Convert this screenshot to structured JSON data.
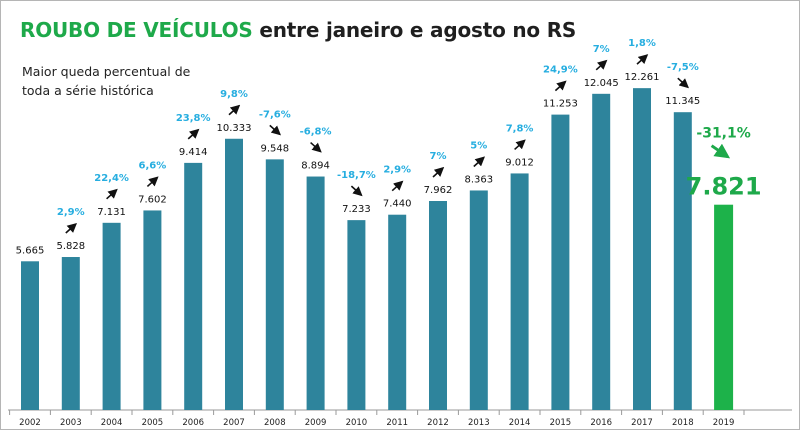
{
  "title": {
    "highlight": "ROUBO DE VEÍCULOS",
    "rest": "entre janeiro e agosto no RS"
  },
  "annotation": "Maior queda percentual de toda a série histórica",
  "colors": {
    "bar": "#2e849c",
    "highlight_bar": "#1db24a",
    "pct_label": "#27aee0",
    "highlight_text": "#1ea94a",
    "arrow": "#111111"
  },
  "chart_data": {
    "type": "bar",
    "title": "ROUBO DE VEÍCULOS entre janeiro e agosto no RS",
    "categories": [
      "2002",
      "2003",
      "2004",
      "2005",
      "2006",
      "2007",
      "2008",
      "2009",
      "2010",
      "2011",
      "2012",
      "2013",
      "2014",
      "2015",
      "2016",
      "2017",
      "2018",
      "2019"
    ],
    "values": [
      5665,
      5828,
      7131,
      7602,
      9414,
      10333,
      9548,
      8894,
      7233,
      7440,
      7962,
      8363,
      9012,
      11253,
      12045,
      12261,
      11345,
      7821
    ],
    "value_labels": [
      "5.665",
      "5.828",
      "7.131",
      "7.602",
      "9.414",
      "10.333",
      "9.548",
      "8.894",
      "7.233",
      "7.440",
      "7.962",
      "8.363",
      "9.012",
      "11.253",
      "12.045",
      "12.261",
      "11.345",
      "7.821"
    ],
    "pct_changes": [
      null,
      "2,9%",
      "22,4%",
      "6,6%",
      "23,8%",
      "9,8%",
      "-7,6%",
      "-6,8%",
      "-18,7%",
      "2,9%",
      "7%",
      "5%",
      "7,8%",
      "24,9%",
      "7%",
      "1,8%",
      "-7,5%",
      "-31,1%"
    ],
    "highlight_index": 17,
    "ylim": [
      0,
      13000
    ],
    "xlabel": "",
    "ylabel": "",
    "grid": false,
    "legend": "none"
  }
}
